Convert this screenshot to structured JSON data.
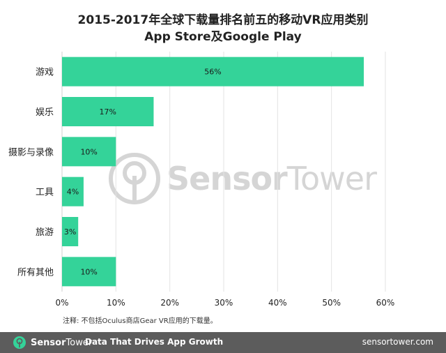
{
  "chart_data": {
    "type": "bar",
    "orientation": "horizontal",
    "title": "2015-2017年全球下载量排名前五的移动VR应用类别",
    "subtitle": "App Store及Google Play",
    "categories": [
      "游戏",
      "娱乐",
      "摄影与录像",
      "工具",
      "旅游",
      "所有其他"
    ],
    "values": [
      56,
      17,
      10,
      4,
      3,
      10
    ],
    "value_labels": [
      "56%",
      "17%",
      "10%",
      "4%",
      "3%",
      "10%"
    ],
    "xlim": [
      0,
      60
    ],
    "x_ticks": [
      0,
      10,
      20,
      30,
      40,
      50,
      60
    ],
    "x_tick_labels": [
      "0%",
      "10%",
      "20%",
      "30%",
      "40%",
      "50%",
      "60%"
    ],
    "grid": "vertical",
    "bar_color": "#34d399"
  },
  "footnote": "注释: 不包括Oculus商店Gear VR应用的下载量。",
  "watermark": {
    "name_bold": "Sensor",
    "name_thin": "Tower",
    "icon": "sensortower-logo-icon"
  },
  "footer": {
    "brand_bold": "Sensor",
    "brand_thin": "Tower",
    "tagline": "Data That Drives App Growth",
    "url": "sensortower.com",
    "icon": "sensortower-logo-icon",
    "accent": "#34d399"
  }
}
